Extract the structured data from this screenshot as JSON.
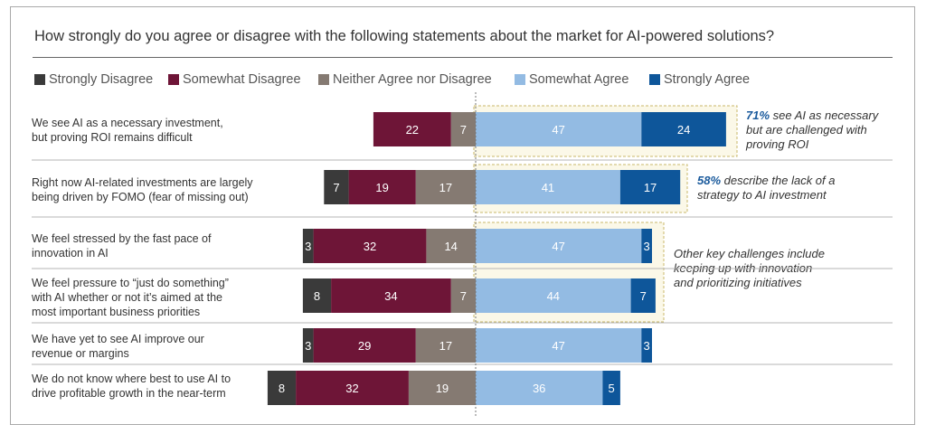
{
  "chart_data": {
    "type": "bar",
    "title": "How strongly do you agree or disagree with the following statements about the market for AI-powered solutions?",
    "legend_position": "top",
    "series": [
      {
        "name": "Strongly Disagree",
        "color": "#3a3a3a",
        "values": [
          0,
          7,
          3,
          8,
          3,
          8
        ]
      },
      {
        "name": "Somewhat Disagree",
        "color": "#6e1537",
        "values": [
          22,
          19,
          32,
          34,
          29,
          32
        ]
      },
      {
        "name": "Neither Agree nor Disagree",
        "color": "#857a72",
        "values": [
          7,
          17,
          14,
          7,
          17,
          19
        ]
      },
      {
        "name": "Somewhat Agree",
        "color": "#93bbe3",
        "values": [
          47,
          41,
          47,
          44,
          47,
          36
        ]
      },
      {
        "name": "Strongly Agree",
        "color": "#0e569a",
        "values": [
          24,
          17,
          3,
          7,
          3,
          5
        ]
      }
    ],
    "categories": [
      "We see AI as a necessary investment, but proving ROI remains difficult",
      "Right now AI-related investments are largely being driven by FOMO (fear of missing out)",
      "We feel stressed by the fast pace of innovation in AI",
      "We feel pressure to “just do something” with AI whether or not it’s aimed at the most important business priorities",
      "We have yet to see AI improve our revenue or margins",
      "We do not know where best to use AI to drive profitable growth in the near-term"
    ],
    "category_lines": [
      [
        "We see AI as a necessary investment,",
        "but proving ROI remains difficult"
      ],
      [
        "Right now AI-related investments are largely",
        "being driven by FOMO (fear of missing out)"
      ],
      [
        "We feel stressed by the fast pace of",
        "innovation in AI"
      ],
      [
        "We feel pressure to “just do something”",
        "with AI whether or not it’s aimed at the",
        "most important business priorities"
      ],
      [
        "We have yet to see AI improve our",
        "revenue or margins"
      ],
      [
        "We do not know where best to use AI to",
        "drive profitable growth in the near-term"
      ]
    ],
    "annotations": [
      {
        "highlight": "71%",
        "lines": [
          " see AI as necessary",
          "but are challenged with",
          "proving ROI"
        ]
      },
      {
        "highlight": "58%",
        "lines": [
          " describe the lack of a",
          "strategy to AI investment"
        ]
      },
      {
        "highlight": "",
        "lines": [
          "Other key challenges include",
          "keeping up with innovation",
          "and prioritizing initiatives"
        ]
      }
    ]
  }
}
